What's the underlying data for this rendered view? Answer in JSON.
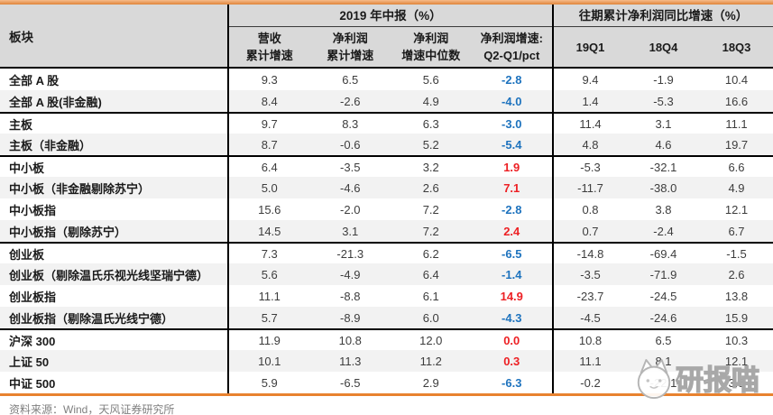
{
  "table": {
    "header": {
      "col_sector": "板块",
      "group_2019": "2019 年中报（%）",
      "group_prior": "往期累计净利润同比增速（%）",
      "sub_columns_2019": [
        {
          "line1": "营收",
          "line2": "累计增速"
        },
        {
          "line1": "净利润",
          "line2": "累计增速"
        },
        {
          "line1": "净利润",
          "line2": "增速中位数"
        },
        {
          "line1": "净利润增速:",
          "line2": "Q2-Q1/pct"
        }
      ],
      "sub_columns_prior": [
        "19Q1",
        "18Q4",
        "18Q3"
      ]
    },
    "groups": [
      {
        "rows": [
          {
            "label": "全部 A 股",
            "cells": [
              "9.3",
              "6.5",
              "5.6",
              "-2.8"
            ],
            "prior": [
              "9.4",
              "-1.9",
              "10.4"
            ]
          },
          {
            "label": "全部 A 股(非金融)",
            "cells": [
              "8.4",
              "-2.6",
              "4.9",
              "-4.0"
            ],
            "prior": [
              "1.4",
              "-5.3",
              "16.6"
            ]
          }
        ]
      },
      {
        "rows": [
          {
            "label": "主板",
            "cells": [
              "9.7",
              "8.3",
              "6.3",
              "-3.0"
            ],
            "prior": [
              "11.4",
              "3.1",
              "11.1"
            ]
          },
          {
            "label": "主板（非金融）",
            "cells": [
              "8.7",
              "-0.6",
              "5.2",
              "-5.4"
            ],
            "prior": [
              "4.8",
              "4.6",
              "19.7"
            ]
          }
        ]
      },
      {
        "rows": [
          {
            "label": "中小板",
            "cells": [
              "6.4",
              "-3.5",
              "3.2",
              "1.9"
            ],
            "prior": [
              "-5.3",
              "-32.1",
              "6.6"
            ]
          },
          {
            "label": "中小板（非金融剔除苏宁）",
            "cells": [
              "5.0",
              "-4.6",
              "2.6",
              "7.1"
            ],
            "prior": [
              "-11.7",
              "-38.0",
              "4.9"
            ]
          },
          {
            "label": "中小板指",
            "cells": [
              "15.6",
              "-2.0",
              "7.2",
              "-2.8"
            ],
            "prior": [
              "0.8",
              "3.8",
              "12.1"
            ]
          },
          {
            "label": "中小板指（剔除苏宁）",
            "cells": [
              "14.5",
              "3.1",
              "7.2",
              "2.4"
            ],
            "prior": [
              "0.7",
              "-2.4",
              "6.7"
            ]
          }
        ]
      },
      {
        "rows": [
          {
            "label": "创业板",
            "cells": [
              "7.3",
              "-21.3",
              "6.2",
              "-6.5"
            ],
            "prior": [
              "-14.8",
              "-69.4",
              "-1.5"
            ]
          },
          {
            "label": "创业板（剔除温氏乐视光线坚瑞宁德）",
            "cells": [
              "5.6",
              "-4.9",
              "6.4",
              "-1.4"
            ],
            "prior": [
              "-3.5",
              "-71.9",
              "2.6"
            ]
          },
          {
            "label": "创业板指",
            "cells": [
              "11.1",
              "-8.8",
              "6.1",
              "14.9"
            ],
            "prior": [
              "-23.7",
              "-24.5",
              "13.8"
            ]
          },
          {
            "label": "创业板指（剔除温氏光线宁德）",
            "cells": [
              "5.7",
              "-8.9",
              "6.0",
              "-4.3"
            ],
            "prior": [
              "-4.5",
              "-24.6",
              "15.9"
            ]
          }
        ]
      },
      {
        "rows": [
          {
            "label": "沪深 300",
            "cells": [
              "11.9",
              "10.8",
              "12.0",
              "0.0"
            ],
            "prior": [
              "10.8",
              "6.5",
              "10.3"
            ]
          },
          {
            "label": "上证 50",
            "cells": [
              "10.1",
              "11.3",
              "11.2",
              "0.3"
            ],
            "prior": [
              "11.1",
              "8.1",
              "12.1"
            ]
          },
          {
            "label": "中证 500",
            "cells": [
              "5.9",
              "-6.5",
              "2.9",
              "-6.3"
            ],
            "prior": [
              "-0.2",
              "-22.1",
              "3.5"
            ]
          }
        ]
      }
    ]
  },
  "footer": {
    "source": "资料来源：Wind，天风证券研究所"
  },
  "watermark": {
    "text": "研报喵",
    "icon": "cat-icon"
  },
  "colors": {
    "q2q1_positive_red": "#ed2024",
    "q2q1_negative_blue": "#1e73be",
    "accent_orange_top": "#e0853a",
    "accent_orange_bottom": "#e8822f",
    "header_bg": "#d9d9d9",
    "stripe_bg": "#f2f2f2"
  }
}
